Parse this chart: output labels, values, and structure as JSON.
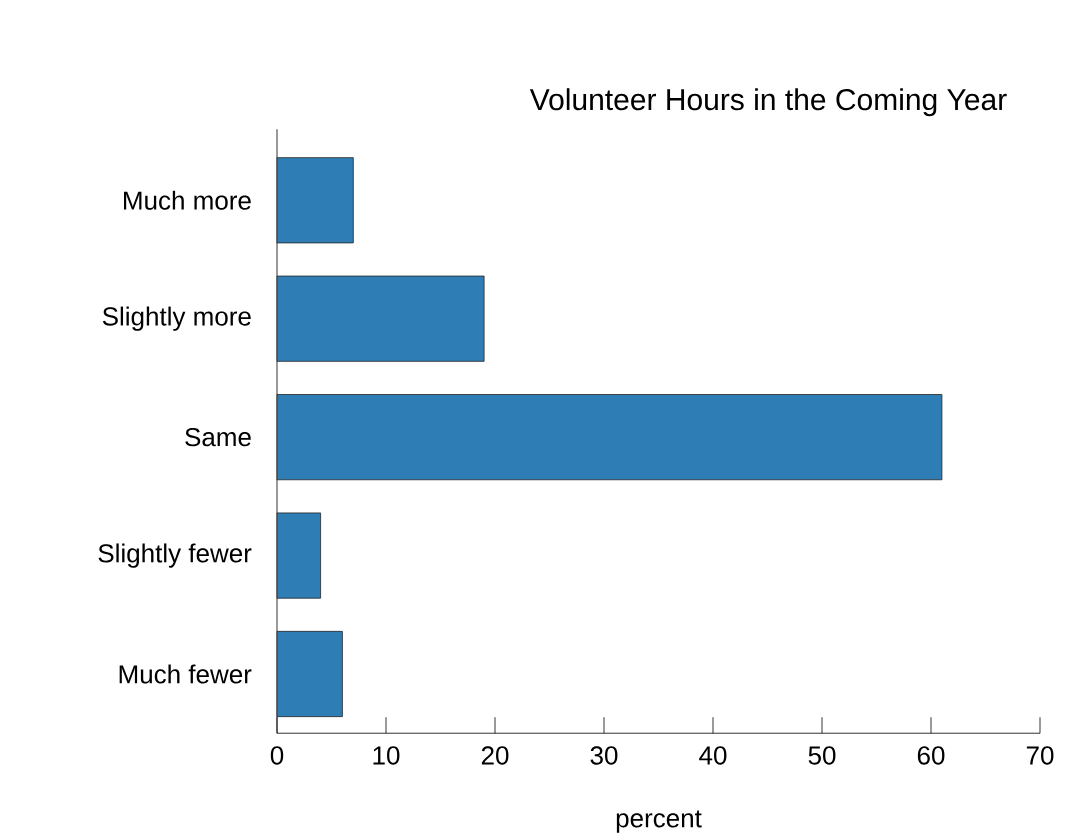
{
  "chart_data": {
    "type": "bar",
    "orientation": "horizontal",
    "title": "Volunteer Hours in the Coming Year",
    "xlabel": "percent",
    "categories": [
      "Much more",
      "Slightly more",
      "Same",
      "Slightly fewer",
      "Much fewer"
    ],
    "values": [
      7,
      19,
      61,
      4,
      6
    ],
    "color": "#2e7db5",
    "xlim": [
      0,
      70
    ],
    "xticks": [
      0,
      10,
      20,
      30,
      40,
      50,
      60,
      70
    ]
  }
}
